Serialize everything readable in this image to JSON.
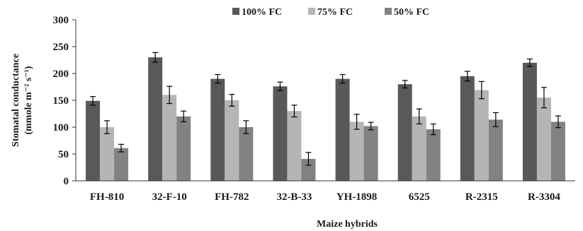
{
  "chart_data": {
    "type": "bar",
    "xlabel": "Maize hybrids",
    "ylabel_line1": "Stomatal conductance",
    "ylabel_line2": "(mmole m⁻² s⁻¹)",
    "ylim": [
      0,
      300
    ],
    "yticks": [
      0,
      50,
      100,
      150,
      200,
      250,
      300
    ],
    "grid": false,
    "legend_position": "top",
    "categories": [
      "FH-810",
      "32-F-10",
      "FH-782",
      "32-B-33",
      "YH-1898",
      "6525",
      "R-2315",
      "R-3304"
    ],
    "series": [
      {
        "name": "100% FC",
        "color": "#595959",
        "values": [
          149,
          230,
          190,
          176,
          190,
          180,
          195,
          220
        ],
        "errors": [
          8,
          9,
          8,
          8,
          8,
          7,
          9,
          7
        ]
      },
      {
        "name": "75% FC",
        "color": "#b5b5b5",
        "values": [
          100,
          160,
          150,
          130,
          110,
          120,
          169,
          155
        ],
        "errors": [
          12,
          16,
          11,
          11,
          14,
          14,
          16,
          19
        ]
      },
      {
        "name": "50% FC",
        "color": "#828282",
        "values": [
          61,
          120,
          100,
          41,
          102,
          96,
          114,
          110
        ],
        "errors": [
          7,
          10,
          12,
          12,
          7,
          10,
          13,
          11
        ]
      }
    ]
  }
}
